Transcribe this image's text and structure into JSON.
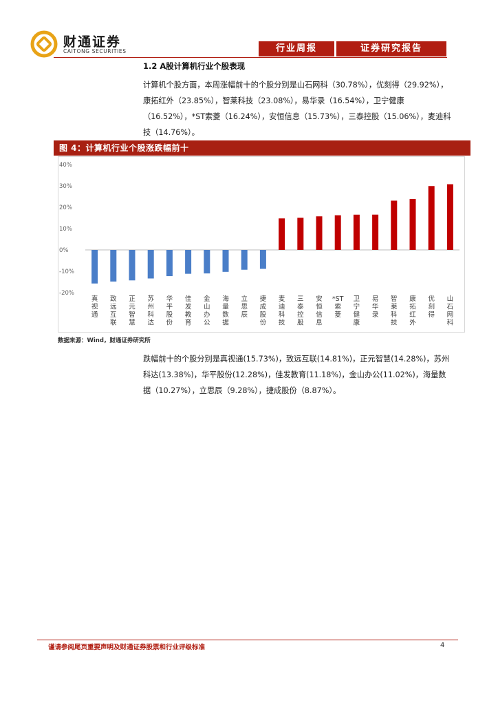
{
  "header": {
    "logo_name": "财通证券",
    "logo_sub": "CAITONG SECURITIES",
    "tag_weekly": "行业周报",
    "tag_report": "证券研究报告"
  },
  "section": {
    "title": "1.2  A股计算机行业个股表现",
    "para_gainers": "计算机个股方面，本周涨幅前十的个股分别是山石网科（30.78%），优刻得（29.92%），康拓红外（23.85%），智莱科技（23.08%），易华录（16.54%），卫宁健康（16.52%），*ST索菱（16.24%），安恒信息（15.73%），三泰控股（15.06%），麦迪科技（14.76%）。",
    "para_losers": "跌幅前十的个股分别是真视通(15.73%)，致远互联(14.81%)，正元智慧(14.28%)，苏州科达(13.38%)，华平股份(12.28%)，佳发教育(11.18%)，金山办公(11.02%)，海量数据（10.27%），立思辰（9.28%），捷成股份（8.87%）。"
  },
  "figure": {
    "title": "图 4：计算机行业个股涨跌幅前十",
    "source": "数据来源：Wind，财通证券研究所"
  },
  "chart_data": {
    "type": "bar",
    "categories": [
      "真视通",
      "致远互联",
      "正元智慧",
      "苏州科达",
      "华平股份",
      "佳发教育",
      "金山办公",
      "海量数据",
      "立思辰",
      "捷成股份",
      "麦迪科技",
      "三泰控股",
      "安恒信息",
      "*ST索菱",
      "卫宁健康",
      "易华录",
      "智莱科技",
      "康拓红外",
      "优刻得",
      "山石网科"
    ],
    "values": [
      -15.73,
      -14.81,
      -14.28,
      -13.38,
      -12.28,
      -11.18,
      -11.02,
      -10.27,
      -9.28,
      -8.87,
      14.76,
      15.06,
      15.73,
      16.24,
      16.52,
      16.54,
      23.08,
      23.85,
      29.92,
      30.78
    ],
    "y_ticks": [
      "40%",
      "30%",
      "20%",
      "10%",
      "0%",
      "-10%",
      "-20%"
    ],
    "ylim": [
      -20,
      40
    ],
    "colors": {
      "negative": "#4a7ec8",
      "positive": "#c00000"
    },
    "grid": false,
    "title": "",
    "xlabel": "",
    "ylabel": ""
  },
  "footer": {
    "disclaimer": "谨请参阅尾页重要声明及财通证券股票和行业评级标准",
    "page": "4"
  }
}
